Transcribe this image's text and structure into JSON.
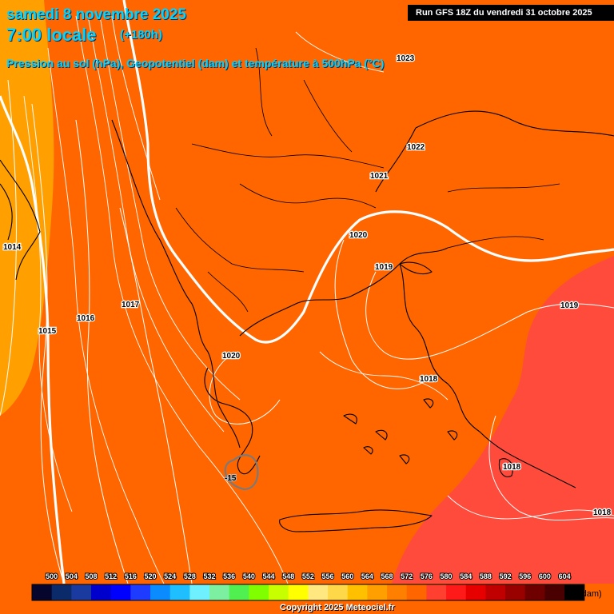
{
  "header": {
    "date": "samedi 8 novembre 2025",
    "time": "7:00 locale",
    "lead": "(+180h)",
    "subtitle": "Pression au sol (hPa), Geopotentiel (dam) et température à 500hPa (°C)",
    "run": "Run GFS 18Z du vendredi 31 octobre 2025"
  },
  "pressure_labels": [
    "1014",
    "1015",
    "1016",
    "1017",
    "1020",
    "1021",
    "1022",
    "1023",
    "1020",
    "1019",
    "1018",
    "1019",
    "1018",
    "1018"
  ],
  "temperature_label": "-15",
  "legend": {
    "unit": "(dam)",
    "ticks": [
      "500",
      "504",
      "508",
      "512",
      "516",
      "520",
      "524",
      "528",
      "532",
      "536",
      "540",
      "544",
      "548",
      "552",
      "556",
      "560",
      "564",
      "568",
      "572",
      "576",
      "580",
      "584",
      "588",
      "592",
      "596",
      "600",
      "604"
    ],
    "colors": [
      "#05052e",
      "#0a2a6a",
      "#1a3aa0",
      "#0000cc",
      "#0000ff",
      "#1e3cff",
      "#0a8cff",
      "#1ebeff",
      "#6ef0ff",
      "#7cf0a0",
      "#50f050",
      "#80ff00",
      "#c8ff00",
      "#ffff00",
      "#ffe880",
      "#ffd84a",
      "#ffc000",
      "#ffa000",
      "#ff8000",
      "#ff6600",
      "#ff4030",
      "#ff1a1a",
      "#e60000",
      "#c00000",
      "#990000",
      "#6e0000",
      "#4a0000",
      "#000000"
    ]
  },
  "copyright": "Copyright 2025 Meteociel.fr",
  "colors": {
    "geopotential_572": "#ff6600",
    "geopotential_568": "#ffa000",
    "geopotential_576": "#ff4b3c",
    "header_text": "#00d4ff"
  }
}
